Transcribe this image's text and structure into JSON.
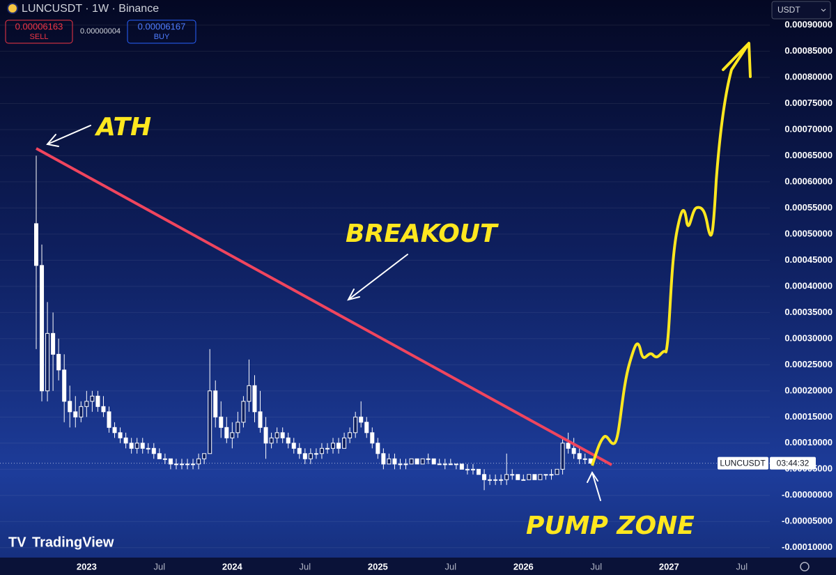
{
  "header": {
    "symbol": "LUNCUSDT · 1W · Binance",
    "sell_price": "0.00006163",
    "sell_label": "SELL",
    "spread": "0.00000004",
    "buy_price": "0.00006167",
    "buy_label": "BUY",
    "currency": "USDT",
    "logo": "TradingView"
  },
  "chart_data": {
    "type": "candlestick",
    "color": "#ffffff",
    "grid": true,
    "annotations": [
      "ATH",
      "BREAKOUT",
      "PUMP ZONE"
    ],
    "symbol_label": "LUNCUSDT",
    "countdown": "03:44:32",
    "categories": [
      null,
      null,
      null,
      null,
      null,
      null,
      null,
      null,
      null,
      "2023",
      null,
      null,
      null,
      null,
      null,
      null,
      null,
      null,
      null,
      null,
      null,
      null,
      "Jul",
      null,
      null,
      null,
      null,
      null,
      null,
      null,
      null,
      null,
      null,
      null,
      null,
      "2024",
      null,
      null,
      null,
      null,
      null,
      null,
      null,
      null,
      null,
      null,
      null,
      null,
      "Jul",
      null,
      null,
      null,
      null,
      null,
      null,
      null,
      null,
      null,
      null,
      null,
      null,
      "2025",
      null,
      null,
      null,
      null,
      null,
      null,
      null,
      null,
      null,
      null,
      null,
      null,
      "Jul",
      null,
      null,
      null,
      null,
      null,
      null,
      null,
      null,
      null,
      null,
      null,
      null,
      "2026",
      null,
      null,
      null,
      null,
      null,
      null,
      null,
      null,
      null,
      null,
      null,
      null,
      "Jul",
      null,
      null,
      null,
      null,
      null,
      null,
      null,
      null,
      null,
      null,
      null,
      null,
      "2027",
      null,
      null,
      null,
      null,
      null,
      null,
      null,
      null,
      null,
      null,
      null,
      null,
      "Jul",
      null,
      null,
      null,
      null,
      null
    ],
    "open": [
      0.00052,
      0.00044,
      0.0002,
      0.00031,
      0.00027,
      0.00024,
      0.00018,
      0.00016,
      0.00015,
      0.00017,
      0.00018,
      0.00019,
      0.00017,
      0.00016,
      0.00013,
      0.00012,
      0.00011,
      0.0001,
      9e-05,
      0.0001,
      9e-05,
      9e-05,
      8e-05,
      7e-05,
      7e-05,
      6e-05,
      6e-05,
      6e-05,
      6e-05,
      6e-05,
      7e-05,
      8e-05,
      0.0002,
      0.00015,
      0.00013,
      0.00011,
      0.00012,
      0.00014,
      0.00018,
      0.00021,
      0.00016,
      0.00013,
      0.0001,
      0.00011,
      0.00012,
      0.00011,
      0.0001,
      9e-05,
      8e-05,
      7e-05,
      8e-05,
      8e-05,
      9e-05,
      9e-05,
      0.0001,
      9e-05,
      0.00011,
      0.00012,
      0.00015,
      0.00014,
      0.00012,
      0.0001,
      8e-05,
      6e-05,
      7e-05,
      6e-05,
      6e-05,
      6e-05,
      7e-05,
      6e-05,
      7e-05,
      7e-05,
      6e-05,
      6e-05,
      6e-05,
      6e-05,
      6e-05,
      5e-05,
      5e-05,
      5e-05,
      4e-05,
      3e-05,
      3e-05,
      3e-05,
      3e-05,
      4e-05,
      4e-05,
      3e-05,
      3e-05,
      4e-05,
      3e-05,
      4e-05,
      4e-05,
      4e-05,
      5e-05,
      0.0001,
      9e-05,
      8e-05,
      7e-05,
      7e-05,
      null,
      null,
      null,
      null,
      null,
      null,
      null,
      null,
      null,
      null,
      null,
      null,
      null,
      null,
      null,
      null,
      null,
      null,
      null,
      null,
      null,
      null,
      null,
      null,
      null,
      null,
      null,
      null,
      null,
      null,
      null,
      null
    ],
    "high": [
      0.00065,
      0.00048,
      0.00037,
      0.00035,
      0.0003,
      0.00027,
      0.00021,
      0.00019,
      0.00018,
      0.0002,
      0.0002,
      0.0002,
      0.00019,
      0.00017,
      0.00014,
      0.00013,
      0.00012,
      0.00011,
      0.00011,
      0.00011,
      0.0001,
      0.0001,
      9e-05,
      8e-05,
      7e-05,
      7e-05,
      7e-05,
      7e-05,
      7e-05,
      8e-05,
      8e-05,
      0.00028,
      0.00022,
      0.00018,
      0.00015,
      0.00014,
      0.00016,
      0.00019,
      0.00026,
      0.00023,
      0.0002,
      0.00015,
      0.00012,
      0.00013,
      0.00013,
      0.00012,
      0.00011,
      0.0001,
      9e-05,
      9e-05,
      9e-05,
      0.0001,
      0.0001,
      0.00011,
      0.00011,
      0.00012,
      0.00013,
      0.00016,
      0.00018,
      0.00015,
      0.00013,
      0.00011,
      9e-05,
      8e-05,
      8e-05,
      7e-05,
      7e-05,
      7e-05,
      7e-05,
      7e-05,
      8e-05,
      7e-05,
      7e-05,
      7e-05,
      7e-05,
      6e-05,
      6e-05,
      6e-05,
      6e-05,
      5e-05,
      5e-05,
      4e-05,
      4e-05,
      4e-05,
      8e-05,
      5e-05,
      4e-05,
      4e-05,
      4e-05,
      4e-05,
      4e-05,
      4e-05,
      5e-05,
      5e-05,
      0.00011,
      0.00012,
      0.00011,
      9e-05,
      8e-05,
      7e-05,
      null,
      null,
      null,
      null,
      null,
      null,
      null,
      null,
      null,
      null,
      null,
      null,
      null,
      null,
      null,
      null,
      null,
      null,
      null,
      null,
      null,
      null,
      null,
      null,
      null,
      null,
      null,
      null,
      null,
      null,
      null,
      null
    ],
    "low": [
      0.00028,
      0.00018,
      0.00018,
      0.0002,
      0.00022,
      0.00014,
      0.00013,
      0.00013,
      0.00014,
      0.00015,
      0.00016,
      0.00016,
      0.00015,
      0.00012,
      0.00011,
      0.0001,
      9e-05,
      8e-05,
      8e-05,
      8e-05,
      8e-05,
      7e-05,
      7e-05,
      6e-05,
      5e-05,
      5e-05,
      5e-05,
      5e-05,
      5e-05,
      5e-05,
      6e-05,
      8e-05,
      0.00013,
      0.00011,
      0.0001,
      9e-05,
      0.00011,
      0.00013,
      0.00016,
      0.00014,
      0.00012,
      7e-05,
      9e-05,
      0.0001,
      0.0001,
      9e-05,
      8e-05,
      7e-05,
      6e-05,
      6e-05,
      7e-05,
      7e-05,
      8e-05,
      8e-05,
      8e-05,
      9e-05,
      0.0001,
      0.00011,
      0.00013,
      0.00011,
      9e-05,
      7e-05,
      5e-05,
      6e-05,
      5e-05,
      5e-05,
      5e-05,
      6e-05,
      6e-05,
      6e-05,
      6e-05,
      6e-05,
      6e-05,
      5e-05,
      6e-05,
      5e-05,
      5e-05,
      4e-05,
      4e-05,
      4e-05,
      1e-05,
      2e-05,
      2e-05,
      2e-05,
      2e-05,
      3e-05,
      3e-05,
      3e-05,
      3e-05,
      3e-05,
      3e-05,
      3e-05,
      3e-05,
      4e-05,
      4e-05,
      8e-05,
      7e-05,
      6e-05,
      6e-05,
      6e-05,
      null,
      null,
      null,
      null,
      null,
      null,
      null,
      null,
      null,
      null,
      null,
      null,
      null,
      null,
      null,
      null,
      null,
      null,
      null,
      null,
      null,
      null,
      null,
      null,
      null,
      null,
      null,
      null,
      null,
      null,
      null,
      null
    ],
    "close": [
      0.00044,
      0.0002,
      0.00031,
      0.00027,
      0.00024,
      0.00018,
      0.00016,
      0.00015,
      0.00017,
      0.00018,
      0.00019,
      0.00017,
      0.00016,
      0.00013,
      0.00012,
      0.00011,
      0.0001,
      9e-05,
      0.0001,
      9e-05,
      9e-05,
      8e-05,
      7e-05,
      7e-05,
      6e-05,
      6e-05,
      6e-05,
      6e-05,
      6e-05,
      7e-05,
      8e-05,
      0.0002,
      0.00015,
      0.00013,
      0.00011,
      0.00012,
      0.00014,
      0.00018,
      0.00021,
      0.00016,
      0.00013,
      0.0001,
      0.00011,
      0.00012,
      0.00011,
      0.0001,
      9e-05,
      8e-05,
      7e-05,
      8e-05,
      8e-05,
      9e-05,
      9e-05,
      0.0001,
      9e-05,
      0.00011,
      0.00012,
      0.00015,
      0.00014,
      0.00012,
      0.0001,
      8e-05,
      6e-05,
      7e-05,
      6e-05,
      6e-05,
      6e-05,
      7e-05,
      6e-05,
      7e-05,
      7e-05,
      6e-05,
      6e-05,
      6e-05,
      6e-05,
      6e-05,
      5e-05,
      5e-05,
      5e-05,
      4e-05,
      3e-05,
      3e-05,
      3e-05,
      3e-05,
      4e-05,
      4e-05,
      3e-05,
      3e-05,
      4e-05,
      3e-05,
      4e-05,
      4e-05,
      4e-05,
      5e-05,
      0.0001,
      9e-05,
      8e-05,
      7e-05,
      7e-05,
      6.163e-05,
      null,
      null,
      null,
      null,
      null,
      null,
      null,
      null,
      null,
      null,
      null,
      null,
      null,
      null,
      null,
      null,
      null,
      null,
      null,
      null,
      null,
      null,
      null,
      null,
      null,
      null,
      null,
      null,
      null,
      null,
      null,
      null
    ],
    "ylim": [
      -0.000119,
      0.000948
    ],
    "yticks": [
      {
        "value": 0.0009,
        "label": "0.00090000"
      },
      {
        "value": 0.00085,
        "label": "0.00085000"
      },
      {
        "value": 0.0008,
        "label": "0.00080000"
      },
      {
        "value": 0.00075,
        "label": "0.00075000"
      },
      {
        "value": 0.0007,
        "label": "0.00070000"
      },
      {
        "value": 0.00065,
        "label": "0.00065000"
      },
      {
        "value": 0.0006,
        "label": "0.00060000"
      },
      {
        "value": 0.00055,
        "label": "0.00055000"
      },
      {
        "value": 0.0005,
        "label": "0.00050000"
      },
      {
        "value": 0.00045,
        "label": "0.00045000"
      },
      {
        "value": 0.0004,
        "label": "0.00040000"
      },
      {
        "value": 0.00035,
        "label": "0.00035000"
      },
      {
        "value": 0.0003,
        "label": "0.00030000"
      },
      {
        "value": 0.00025,
        "label": "0.00025000"
      },
      {
        "value": 0.0002,
        "label": "0.00020000"
      },
      {
        "value": 0.00015,
        "label": "0.00015000"
      },
      {
        "value": 0.0001,
        "label": "0.00010000"
      },
      {
        "value": 5e-05,
        "label": "0.00005000"
      },
      {
        "value": 0,
        "label": "-0.00000000"
      },
      {
        "value": -5e-05,
        "label": "-0.00005000"
      },
      {
        "value": -0.0001,
        "label": "-0.00010000"
      }
    ]
  }
}
